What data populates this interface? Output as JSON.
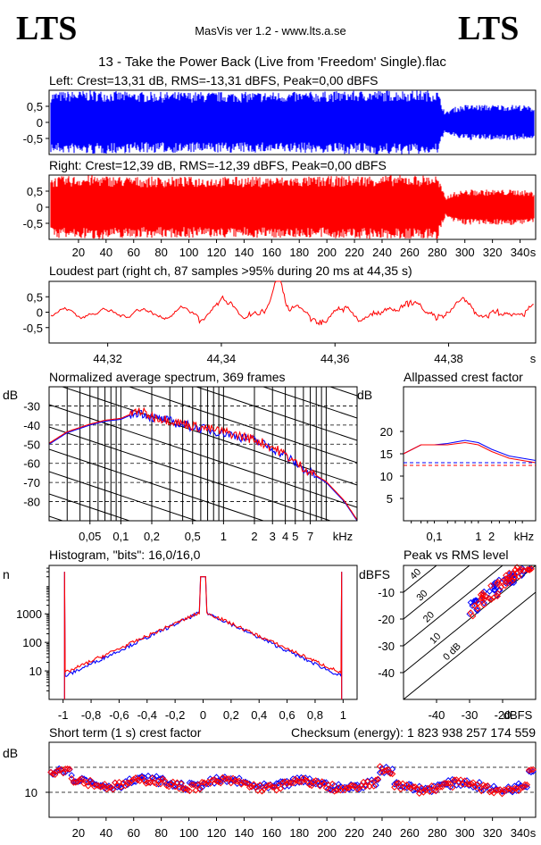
{
  "header": {
    "logo_left": "LTS",
    "logo_right": "LTS",
    "app_title": "MasVis ver 1.2 - www.lts.a.se",
    "file_title": "13 - Take the Power Back (Live from 'Freedom' Single).flac"
  },
  "colors": {
    "left": "#0000ff",
    "right": "#ff0000",
    "axis": "#000000"
  },
  "chart_data": [
    {
      "id": "left",
      "type": "line",
      "title": "Left: Crest=13,31 dB, RMS=-13,31 dBFS, Peak=0,00 dBFS",
      "series_name": "left",
      "yticks": [
        "0,5",
        "0",
        "-0,5"
      ],
      "ylim": [
        -1,
        1
      ],
      "xlim": [
        0,
        350
      ],
      "envelope": [
        [
          0,
          0.95
        ],
        [
          30,
          1.0
        ],
        [
          60,
          0.95
        ],
        [
          120,
          0.95
        ],
        [
          180,
          0.95
        ],
        [
          240,
          1.0
        ],
        [
          280,
          1.0
        ],
        [
          286,
          0.3
        ],
        [
          290,
          0.45
        ],
        [
          300,
          0.55
        ],
        [
          340,
          0.55
        ],
        [
          348,
          0.5
        ]
      ]
    },
    {
      "id": "right",
      "type": "line",
      "title": "Right: Crest=12,39 dB, RMS=-12,39 dBFS, Peak=0,00 dBFS",
      "series_name": "right",
      "yticks": [
        "0,5",
        "0",
        "-0,5"
      ],
      "ylim": [
        -1,
        1
      ],
      "xlim": [
        0,
        350
      ],
      "xticks": [
        "20",
        "40",
        "60",
        "80",
        "100",
        "120",
        "140",
        "160",
        "180",
        "200",
        "220",
        "240",
        "260",
        "280",
        "300",
        "320",
        "340"
      ],
      "xunit": "s",
      "envelope": [
        [
          0,
          0.95
        ],
        [
          30,
          1.0
        ],
        [
          60,
          0.95
        ],
        [
          120,
          0.95
        ],
        [
          180,
          0.95
        ],
        [
          240,
          1.0
        ],
        [
          280,
          1.0
        ],
        [
          286,
          0.3
        ],
        [
          290,
          0.45
        ],
        [
          300,
          0.55
        ],
        [
          340,
          0.55
        ],
        [
          348,
          0.5
        ]
      ]
    },
    {
      "id": "loudest",
      "type": "line",
      "title": "Loudest part (right ch, 87 samples >95% during 20 ms at 44,35 s)",
      "yticks": [
        "0,5",
        "0",
        "-0,5"
      ],
      "ylim": [
        -1,
        1
      ],
      "xlim": [
        44.31,
        44.395
      ],
      "xticks": [
        "44,32",
        "44,34",
        "44,36",
        "44,38"
      ],
      "xunit": "s",
      "peak_at": 44.35
    },
    {
      "id": "spectrum",
      "type": "line",
      "title": "Normalized average spectrum, 369 frames",
      "ylabel": "dB",
      "yticks": [
        "-30",
        "-40",
        "-50",
        "-60",
        "-70",
        "-80"
      ],
      "ylim": [
        -90,
        -20
      ],
      "xticks": [
        "0,05",
        "0,1",
        "0,2",
        "0,5",
        "1",
        "2",
        "3",
        "4",
        "5",
        "7"
      ],
      "xunit": "kHz",
      "xlog": true,
      "xlim_khz": [
        0.02,
        20
      ],
      "points_khz_db": [
        [
          0.02,
          -50
        ],
        [
          0.03,
          -44
        ],
        [
          0.05,
          -40
        ],
        [
          0.07,
          -38
        ],
        [
          0.1,
          -37
        ],
        [
          0.15,
          -33
        ],
        [
          0.2,
          -36
        ],
        [
          0.3,
          -38
        ],
        [
          0.5,
          -41
        ],
        [
          1,
          -44
        ],
        [
          2,
          -48
        ],
        [
          3,
          -52
        ],
        [
          4,
          -56
        ],
        [
          5,
          -60
        ],
        [
          7,
          -65
        ],
        [
          10,
          -70
        ],
        [
          15,
          -80
        ],
        [
          20,
          -90
        ]
      ]
    },
    {
      "id": "allpass",
      "type": "line",
      "title": "Allpassed crest factor",
      "ylabel": "dB",
      "yticks": [
        "20",
        "15",
        "10",
        "5"
      ],
      "ylim": [
        0,
        30
      ],
      "xticks": [
        "0,1",
        "1",
        "2"
      ],
      "xunit": "kHz",
      "left_points": [
        [
          0.02,
          15
        ],
        [
          0.05,
          17
        ],
        [
          0.1,
          17
        ],
        [
          0.2,
          17.3
        ],
        [
          0.5,
          18
        ],
        [
          1,
          17.5
        ],
        [
          2,
          16
        ],
        [
          5,
          14.5
        ],
        [
          20,
          13.5
        ]
      ],
      "right_points": [
        [
          0.02,
          15
        ],
        [
          0.05,
          17
        ],
        [
          0.1,
          17
        ],
        [
          0.2,
          17
        ],
        [
          0.5,
          17.5
        ],
        [
          1,
          17
        ],
        [
          2,
          15.5
        ],
        [
          5,
          14
        ],
        [
          20,
          13
        ]
      ],
      "reference_left": 13,
      "reference_right": 12.4
    },
    {
      "id": "histogram",
      "type": "line",
      "title": "Histogram, \"bits\": 16,0/16,0",
      "ylabel": "n",
      "yticks": [
        "1000",
        "100",
        "10"
      ],
      "ylog": true,
      "ylim": [
        1,
        50000
      ],
      "xticks": [
        "-1",
        "-0,8",
        "-0,6",
        "-0,4",
        "-0,2",
        "0",
        "0,2",
        "0,4",
        "0,6",
        "0,8",
        "1"
      ],
      "xlim": [
        -1.1,
        1.1
      ]
    },
    {
      "id": "peakrms",
      "type": "scatter",
      "title": "Peak vs RMS level",
      "ylabel": "dBFS",
      "xlabel": "dBFS",
      "yticks": [
        "-10",
        "-20",
        "-30",
        "-40"
      ],
      "xticks": [
        "-40",
        "-30",
        "-20"
      ],
      "ylim": [
        -50,
        0
      ],
      "xlim": [
        -50,
        -10
      ],
      "diagonal_labels": [
        "40",
        "30",
        "20",
        "10",
        "0 dB"
      ],
      "diagonal_offsets": [
        40,
        30,
        20,
        10,
        0
      ]
    },
    {
      "id": "shortterm",
      "type": "scatter",
      "title": "Short term (1 s) crest factor",
      "checksum": "Checksum (energy):  1 823 938 257 174 559",
      "ylabel": "dB",
      "yticks": [
        "10"
      ],
      "ylim": [
        0,
        30
      ],
      "xlim": [
        0,
        350
      ],
      "xticks": [
        "20",
        "40",
        "60",
        "80",
        "100",
        "120",
        "140",
        "160",
        "180",
        "200",
        "220",
        "240",
        "260",
        "280",
        "300",
        "320",
        "340"
      ],
      "xunit": "s",
      "reference_lines": [
        20,
        10
      ]
    }
  ]
}
